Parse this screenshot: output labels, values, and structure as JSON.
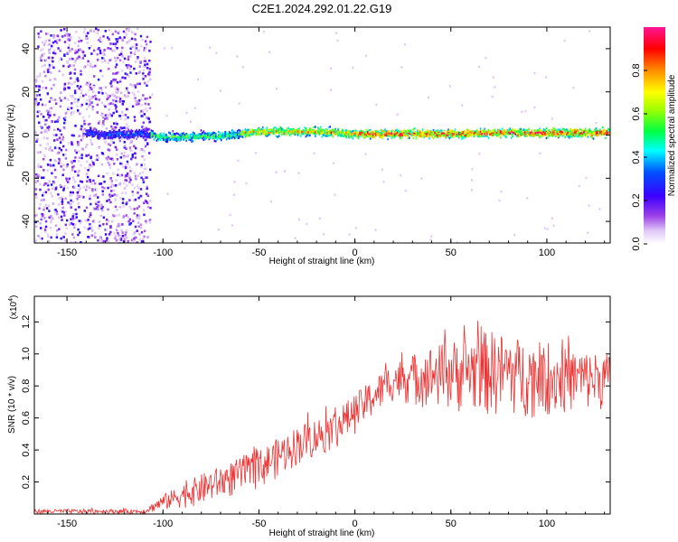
{
  "title": "C2E1.2024.292.01.22.G19",
  "chart_data": [
    {
      "type": "heatmap",
      "xlabel": "Height of straight line (km)",
      "ylabel": "Frequency (Hz)",
      "xlim": [
        -167,
        133
      ],
      "ylim": [
        -50,
        50
      ],
      "xticks": [
        -150,
        -100,
        -50,
        0,
        50,
        100
      ],
      "yticks": [
        -40,
        -20,
        0,
        20,
        40
      ],
      "colorbar": {
        "label": "Normalized spectral amplitude",
        "range": [
          0,
          1
        ],
        "ticks": [
          "0.0",
          "0.2",
          "0.4",
          "0.6",
          "0.8"
        ],
        "colors": [
          "#ffffff",
          "#d9b3f7",
          "#8a2be2",
          "#2020ff",
          "#00ffff",
          "#00ff00",
          "#ffff00",
          "#ff8c00",
          "#ff0000",
          "#ff1493"
        ]
      },
      "ridge": [
        {
          "x": -135,
          "y": 0.0
        },
        {
          "x": -110,
          "y": 0.5
        },
        {
          "x": -100,
          "y": -1.0
        },
        {
          "x": -70,
          "y": -0.5
        },
        {
          "x": -50,
          "y": 1.5
        },
        {
          "x": -20,
          "y": 1.5
        },
        {
          "x": 0,
          "y": 0.5
        },
        {
          "x": 50,
          "y": 0.5
        },
        {
          "x": 80,
          "y": 1.0
        },
        {
          "x": 133,
          "y": 1.0
        }
      ]
    },
    {
      "type": "line",
      "xlabel": "Height of straight line (km)",
      "ylabel": "SNR (10 * v/v)",
      "multiplier": "(x10",
      "multiplier_exp": "4",
      "xlim": [
        -167,
        133
      ],
      "ylim": [
        0,
        1.36
      ],
      "xticks": [
        -150,
        -100,
        -50,
        0,
        50,
        100
      ],
      "yticks": [
        "0.2",
        "0.4",
        "0.6",
        "0.8",
        "1.0",
        "1.2"
      ],
      "color": "#ee3333",
      "envelope": [
        {
          "x": -167,
          "lo": 0.0,
          "hi": 0.03
        },
        {
          "x": -110,
          "lo": 0.0,
          "hi": 0.03
        },
        {
          "x": -100,
          "lo": 0.02,
          "hi": 0.12
        },
        {
          "x": -80,
          "lo": 0.05,
          "hi": 0.25
        },
        {
          "x": -50,
          "lo": 0.15,
          "hi": 0.4
        },
        {
          "x": -30,
          "lo": 0.3,
          "hi": 0.55
        },
        {
          "x": -10,
          "lo": 0.4,
          "hi": 0.65
        },
        {
          "x": 5,
          "lo": 0.55,
          "hi": 0.8
        },
        {
          "x": 20,
          "lo": 0.7,
          "hi": 0.95
        },
        {
          "x": 40,
          "lo": 0.65,
          "hi": 1.05
        },
        {
          "x": 70,
          "lo": 0.6,
          "hi": 1.15
        },
        {
          "x": 100,
          "lo": 0.6,
          "hi": 1.05
        },
        {
          "x": 133,
          "lo": 0.65,
          "hi": 1.0
        }
      ]
    }
  ]
}
